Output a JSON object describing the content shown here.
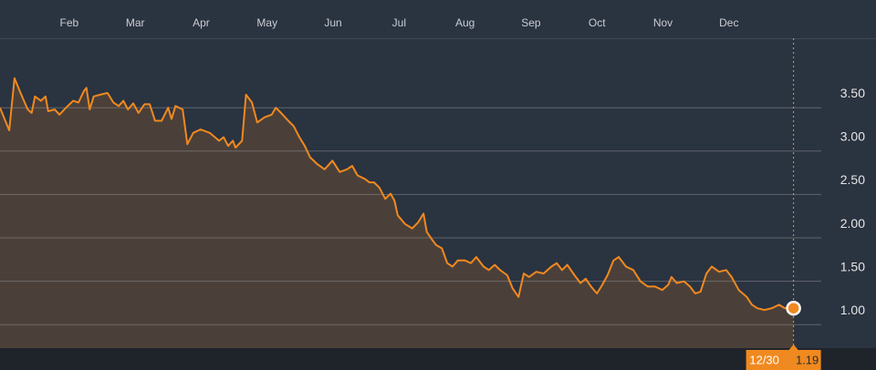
{
  "chart_data": {
    "type": "area",
    "color": "#f0891f",
    "fill": "#4b4039",
    "grid": true,
    "xlim": [
      0.95,
      13.4
    ],
    "ylim": [
      0.73,
      4.3
    ],
    "xticks": [
      {
        "value": 2,
        "label": "Feb"
      },
      {
        "value": 3,
        "label": "Mar"
      },
      {
        "value": 4,
        "label": "Apr"
      },
      {
        "value": 5,
        "label": "May"
      },
      {
        "value": 6,
        "label": "Jun"
      },
      {
        "value": 7,
        "label": "Jul"
      },
      {
        "value": 8,
        "label": "Aug"
      },
      {
        "value": 9,
        "label": "Sep"
      },
      {
        "value": 10,
        "label": "Oct"
      },
      {
        "value": 11,
        "label": "Nov"
      },
      {
        "value": 12,
        "label": "Dec"
      }
    ],
    "yticks": [
      {
        "value": 1,
        "label": "1.00"
      },
      {
        "value": 1.5,
        "label": "1.50"
      },
      {
        "value": 2,
        "label": "2.00"
      },
      {
        "value": 2.5,
        "label": "2.50"
      },
      {
        "value": 3,
        "label": "3.00"
      },
      {
        "value": 3.5,
        "label": "3.50"
      }
    ],
    "x": [
      0.95,
      1.09,
      1.17,
      1.25,
      1.37,
      1.43,
      1.48,
      1.57,
      1.64,
      1.68,
      1.78,
      1.85,
      1.95,
      2.06,
      2.14,
      2.22,
      2.26,
      2.31,
      2.37,
      2.47,
      2.58,
      2.67,
      2.75,
      2.82,
      2.89,
      2.97,
      3.05,
      3.14,
      3.22,
      3.3,
      3.4,
      3.5,
      3.55,
      3.61,
      3.72,
      3.79,
      3.88,
      3.99,
      4.13,
      4.27,
      4.34,
      4.41,
      4.48,
      4.52,
      4.62,
      4.68,
      4.77,
      4.85,
      4.96,
      5.07,
      5.13,
      5.21,
      5.32,
      5.4,
      5.49,
      5.57,
      5.65,
      5.76,
      5.87,
      5.99,
      6.1,
      6.21,
      6.29,
      6.37,
      6.48,
      6.55,
      6.62,
      6.7,
      6.79,
      6.87,
      6.93,
      6.98,
      7.09,
      7.2,
      7.29,
      7.37,
      7.42,
      7.51,
      7.56,
      7.65,
      7.73,
      7.81,
      7.89,
      8.0,
      8.09,
      8.17,
      8.28,
      8.36,
      8.45,
      8.53,
      8.64,
      8.72,
      8.81,
      8.89,
      8.97,
      9.08,
      9.19,
      9.31,
      9.39,
      9.47,
      9.55,
      9.66,
      9.75,
      9.83,
      9.91,
      10.0,
      10.08,
      10.16,
      10.25,
      10.33,
      10.44,
      10.55,
      10.66,
      10.77,
      10.88,
      10.99,
      11.08,
      11.13,
      11.21,
      11.32,
      11.41,
      11.49,
      11.57,
      11.66,
      11.74,
      11.85,
      11.96,
      12.04,
      12.15,
      12.27,
      12.35,
      12.43,
      12.54,
      12.65,
      12.76,
      12.85,
      12.93,
      12.98
    ],
    "values": [
      3.5,
      3.24,
      3.84,
      3.69,
      3.48,
      3.44,
      3.63,
      3.58,
      3.63,
      3.46,
      3.48,
      3.42,
      3.5,
      3.58,
      3.56,
      3.69,
      3.73,
      3.48,
      3.63,
      3.65,
      3.67,
      3.56,
      3.52,
      3.58,
      3.48,
      3.55,
      3.44,
      3.54,
      3.54,
      3.35,
      3.35,
      3.5,
      3.37,
      3.52,
      3.48,
      3.08,
      3.21,
      3.25,
      3.21,
      3.12,
      3.16,
      3.06,
      3.12,
      3.04,
      3.12,
      3.65,
      3.56,
      3.33,
      3.39,
      3.42,
      3.5,
      3.44,
      3.35,
      3.29,
      3.16,
      3.06,
      2.93,
      2.85,
      2.79,
      2.89,
      2.76,
      2.79,
      2.83,
      2.72,
      2.68,
      2.64,
      2.64,
      2.58,
      2.45,
      2.51,
      2.43,
      2.26,
      2.16,
      2.11,
      2.18,
      2.28,
      2.07,
      1.97,
      1.92,
      1.88,
      1.71,
      1.67,
      1.74,
      1.74,
      1.71,
      1.78,
      1.67,
      1.63,
      1.69,
      1.63,
      1.57,
      1.42,
      1.32,
      1.59,
      1.55,
      1.61,
      1.59,
      1.67,
      1.71,
      1.63,
      1.69,
      1.57,
      1.48,
      1.53,
      1.44,
      1.36,
      1.46,
      1.57,
      1.74,
      1.78,
      1.67,
      1.63,
      1.5,
      1.44,
      1.44,
      1.4,
      1.46,
      1.55,
      1.48,
      1.5,
      1.44,
      1.36,
      1.38,
      1.59,
      1.67,
      1.61,
      1.63,
      1.55,
      1.4,
      1.32,
      1.23,
      1.19,
      1.17,
      1.19,
      1.23,
      1.19,
      1.21,
      1.19
    ],
    "marker": {
      "date_label": "12/30",
      "value": 1.19
    }
  }
}
